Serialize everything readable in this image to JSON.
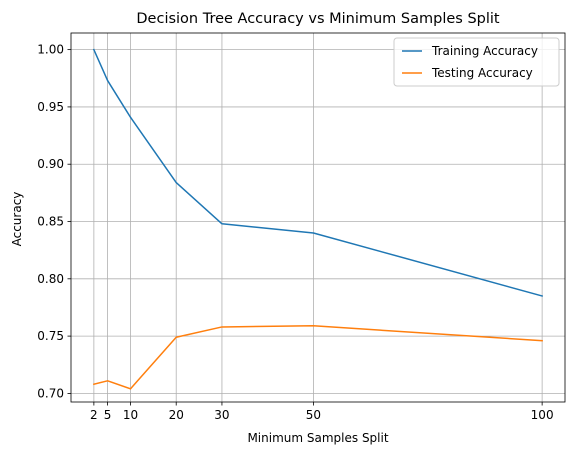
{
  "chart_data": {
    "type": "line",
    "title": "Decision Tree Accuracy vs Minimum Samples Split",
    "xlabel": "Minimum Samples Split",
    "ylabel": "Accuracy",
    "x": [
      2,
      5,
      10,
      20,
      30,
      50,
      100
    ],
    "x_ticks": [
      2,
      5,
      10,
      20,
      30,
      50,
      100
    ],
    "y_ticks": [
      "0.70",
      "0.75",
      "0.80",
      "0.85",
      "0.90",
      "0.95",
      "1.00"
    ],
    "xlim": [
      -3.0,
      105.0
    ],
    "ylim": [
      0.6925,
      1.0145
    ],
    "grid": true,
    "legend_position": "upper-right",
    "series": [
      {
        "name": "Training Accuracy",
        "color": "#1f77b4",
        "values": [
          1.0,
          0.973,
          0.941,
          0.884,
          0.848,
          0.84,
          0.785
        ]
      },
      {
        "name": "Testing Accuracy",
        "color": "#ff7f0e",
        "values": [
          0.708,
          0.711,
          0.704,
          0.749,
          0.758,
          0.759,
          0.746
        ]
      }
    ]
  }
}
